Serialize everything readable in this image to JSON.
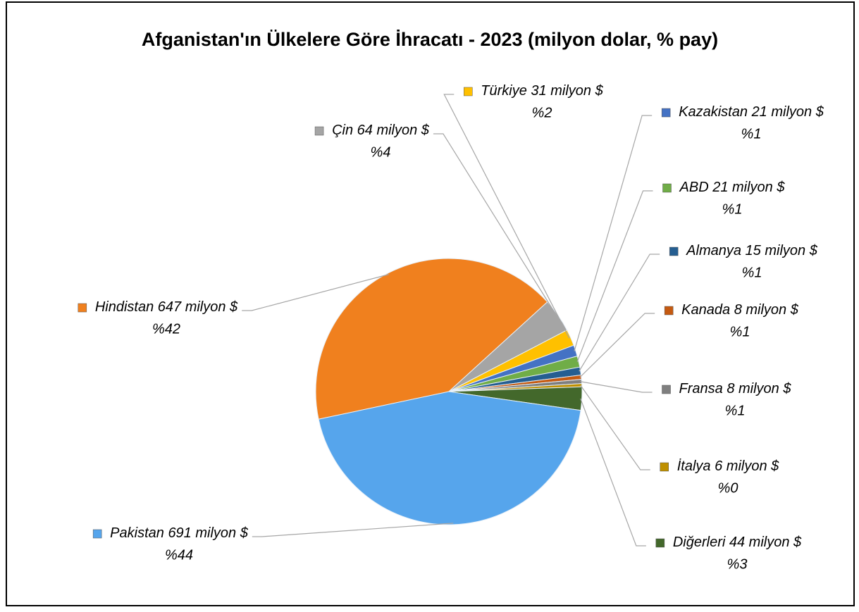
{
  "chart_data": {
    "type": "pie",
    "title": "Afganistan'ın Ülkelere Göre İhracatı - 2023 (milyon dolar, % pay)",
    "categories": [
      "Hindistan",
      "Çin",
      "Türkiye",
      "Kazakistan",
      "ABD",
      "Almanya",
      "Kanada",
      "Fransa",
      "İtalya",
      "Diğerleri",
      "Pakistan"
    ],
    "values": [
      647,
      64,
      31,
      21,
      21,
      15,
      8,
      8,
      6,
      44,
      691
    ],
    "value_labels": [
      "647 milyon $",
      "64 milyon $",
      "31 milyon $",
      "21 milyon $",
      "21 milyon $",
      "15 milyon $",
      "8 milyon $",
      "8 milyon $",
      "6 milyon $",
      "44 milyon $",
      "691 milyon $"
    ],
    "shares": [
      42,
      4,
      2,
      1,
      1,
      1,
      1,
      1,
      0,
      3,
      44
    ],
    "share_labels": [
      "%42",
      "%4",
      "%2",
      "%1",
      "%1",
      "%1",
      "%1",
      "%1",
      "%0",
      "%3",
      "%44"
    ],
    "colors": [
      "#f0801e",
      "#a5a5a5",
      "#ffc000",
      "#4472c4",
      "#70ad47",
      "#255e91",
      "#c55a11",
      "#7f7f7f",
      "#bf9000",
      "#43682b",
      "#56a5ec"
    ]
  }
}
